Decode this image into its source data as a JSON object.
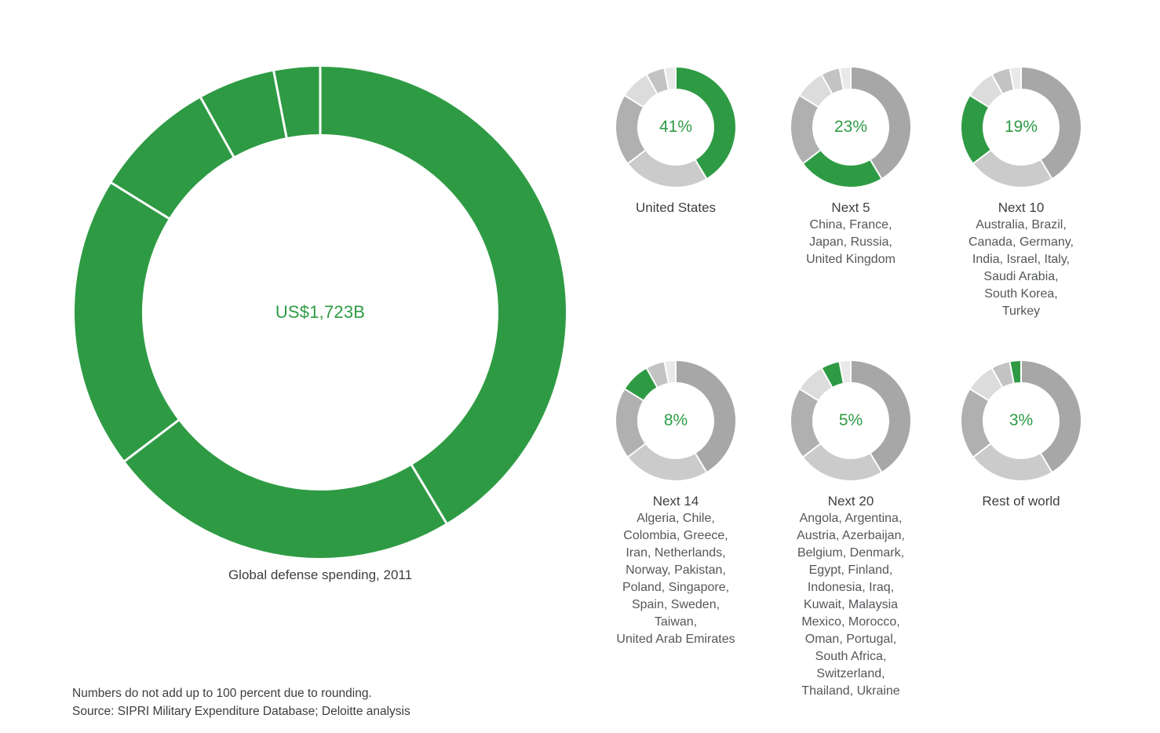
{
  "figure": {
    "footnote": "Numbers do not add up to 100 percent due to rounding.",
    "source": "Source: SIPRI Military Expenditure Database; Deloitte analysis"
  },
  "palette": {
    "green": "#2e9b44",
    "gray_cycle": [
      "#a7a7a7",
      "#cbcbcb",
      "#b0b0b0",
      "#dcdcdc",
      "#c3c3c3",
      "#e9e9e9"
    ],
    "divider": "#ffffff",
    "label_text": "#3d4043",
    "list_text": "#54575a"
  },
  "chart_data": [
    {
      "id": "global",
      "type": "pie",
      "caption": "Global defense spending, 2011",
      "center_label": "US$1,723B",
      "segment_labels": [
        "United States",
        "Next 5",
        "Next 10",
        "Next 14",
        "Next 20",
        "Rest of world"
      ],
      "values": [
        41,
        23,
        19,
        8,
        5,
        3
      ],
      "highlight": "all"
    },
    {
      "id": "united-states",
      "type": "pie",
      "label": "United States",
      "percent_label": "41%",
      "values": [
        41,
        23,
        19,
        8,
        5,
        3
      ],
      "highlight": 0,
      "countries": []
    },
    {
      "id": "next-5",
      "type": "pie",
      "label": "Next 5",
      "percent_label": "23%",
      "values": [
        41,
        23,
        19,
        8,
        5,
        3
      ],
      "highlight": 1,
      "countries": [
        "China, France,",
        "Japan, Russia,",
        "United Kingdom"
      ]
    },
    {
      "id": "next-10",
      "type": "pie",
      "label": "Next 10",
      "percent_label": "19%",
      "values": [
        41,
        23,
        19,
        8,
        5,
        3
      ],
      "highlight": 2,
      "countries": [
        "Australia, Brazil,",
        "Canada, Germany,",
        "India, Israel, Italy,",
        "Saudi Arabia,",
        "South Korea,",
        "Turkey"
      ]
    },
    {
      "id": "next-14",
      "type": "pie",
      "label": "Next 14",
      "percent_label": "8%",
      "values": [
        41,
        23,
        19,
        8,
        5,
        3
      ],
      "highlight": 3,
      "countries": [
        "Algeria, Chile,",
        "Colombia, Greece,",
        "Iran, Netherlands,",
        "Norway, Pakistan,",
        "Poland, Singapore,",
        "Spain, Sweden,",
        "Taiwan,",
        "United Arab Emirates"
      ]
    },
    {
      "id": "next-20",
      "type": "pie",
      "label": "Next 20",
      "percent_label": "5%",
      "values": [
        41,
        23,
        19,
        8,
        5,
        3
      ],
      "highlight": 4,
      "countries": [
        "Angola, Argentina,",
        "Austria, Azerbaijan,",
        "Belgium, Denmark,",
        "Egypt, Finland,",
        "Indonesia, Iraq,",
        "Kuwait, Malaysia",
        "Mexico, Morocco,",
        "Oman, Portugal,",
        "South Africa,",
        "Switzerland,",
        "Thailand, Ukraine"
      ]
    },
    {
      "id": "rest-of-world",
      "type": "pie",
      "label": "Rest of world",
      "percent_label": "3%",
      "values": [
        41,
        23,
        19,
        8,
        5,
        3
      ],
      "highlight": 5,
      "countries": []
    }
  ]
}
